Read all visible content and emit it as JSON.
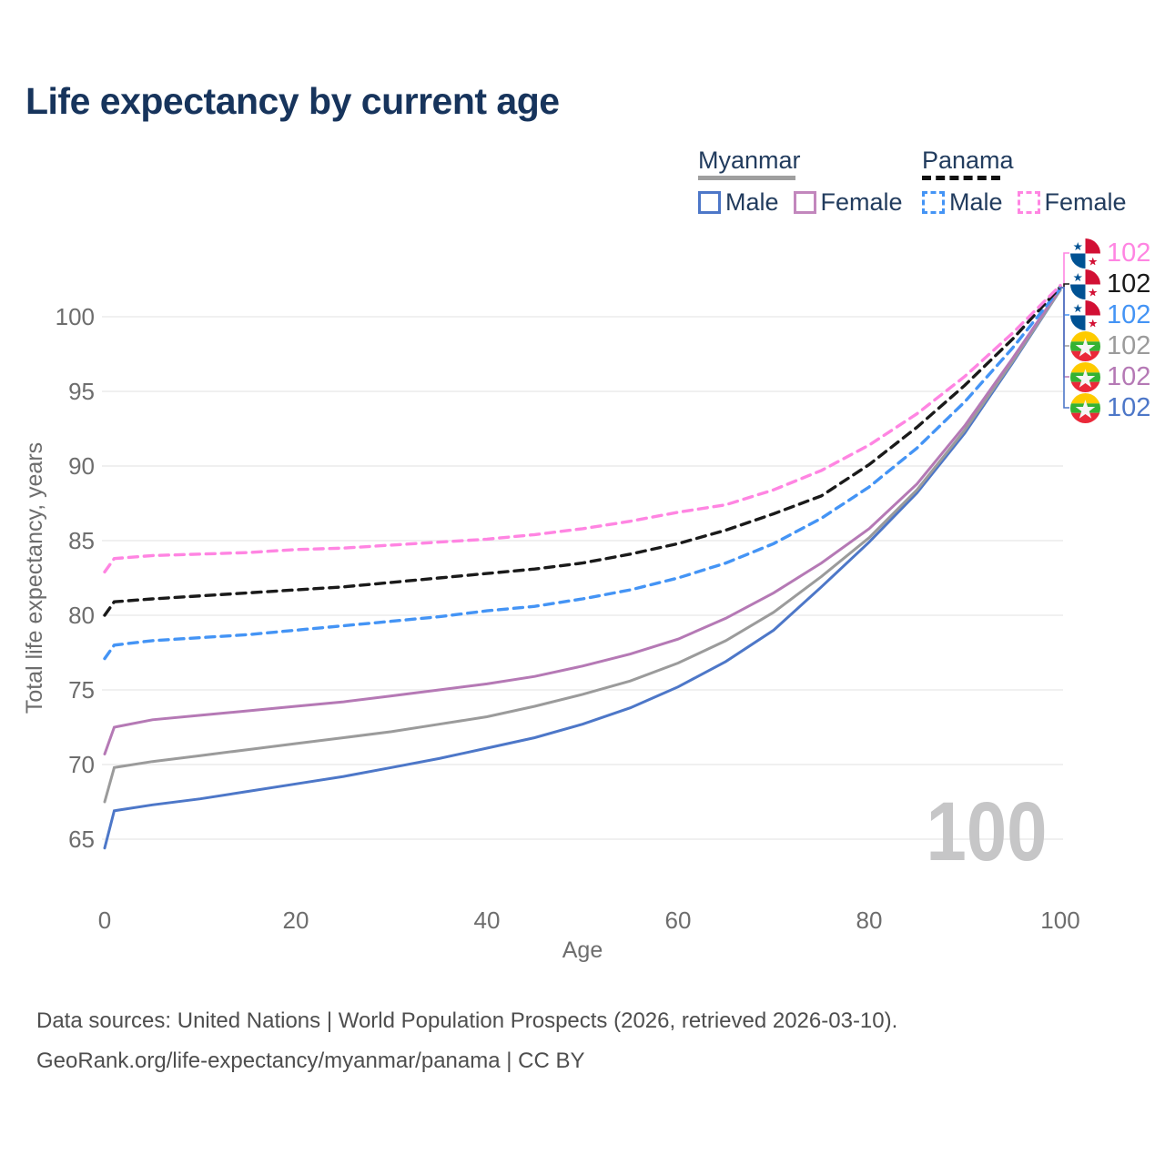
{
  "title": "Life expectancy by current age",
  "legend": {
    "groups": [
      {
        "country": "Myanmar",
        "style": "solid",
        "line_color": "#9f9f9f",
        "items": [
          {
            "label": "Male",
            "color": "#4d77c8"
          },
          {
            "label": "Female",
            "color": "#c287bd"
          }
        ]
      },
      {
        "country": "Panama",
        "style": "dashed",
        "line_color": "#111111",
        "items": [
          {
            "label": "Male",
            "color": "#4494f5"
          },
          {
            "label": "Female",
            "color": "#ff85e2"
          }
        ]
      }
    ]
  },
  "chart_data": {
    "type": "line",
    "title": "Life expectancy by current age",
    "xlabel": "Age",
    "ylabel": "Total life expectancy, years",
    "xlim": [
      0,
      100
    ],
    "ylim": [
      63,
      103
    ],
    "xticks": [
      0,
      20,
      40,
      60,
      80,
      100
    ],
    "yticks": [
      65,
      70,
      75,
      80,
      85,
      90,
      95,
      100
    ],
    "grid": "horizontal",
    "watermark": "100",
    "legend_position": "top-right",
    "x": [
      0,
      1,
      5,
      10,
      15,
      20,
      25,
      30,
      35,
      40,
      45,
      50,
      55,
      60,
      65,
      70,
      75,
      80,
      85,
      90,
      95,
      100
    ],
    "series": [
      {
        "name": "Myanmar Male",
        "color": "#4d77c8",
        "dash": false,
        "values": [
          64.4,
          66.9,
          67.3,
          67.7,
          68.2,
          68.7,
          69.2,
          69.8,
          70.4,
          71.1,
          71.8,
          72.7,
          73.8,
          75.2,
          76.9,
          79.0,
          81.9,
          84.9,
          88.2,
          92.2,
          96.9,
          101.8
        ]
      },
      {
        "name": "Myanmar (all)",
        "color": "#9b9b9b",
        "dash": false,
        "values": [
          67.5,
          69.8,
          70.2,
          70.6,
          71.0,
          71.4,
          71.8,
          72.2,
          72.7,
          73.2,
          73.9,
          74.7,
          75.6,
          76.8,
          78.3,
          80.2,
          82.6,
          85.2,
          88.4,
          92.4,
          97.0,
          101.8
        ]
      },
      {
        "name": "Myanmar Female",
        "color": "#b579b5",
        "dash": false,
        "values": [
          70.7,
          72.5,
          73.0,
          73.3,
          73.6,
          73.9,
          74.2,
          74.6,
          75.0,
          75.4,
          75.9,
          76.6,
          77.4,
          78.4,
          79.8,
          81.5,
          83.5,
          85.8,
          88.8,
          92.7,
          97.2,
          101.9
        ]
      },
      {
        "name": "Panama Male",
        "color": "#4494f5",
        "dash": true,
        "values": [
          77.1,
          78.0,
          78.3,
          78.5,
          78.7,
          79.0,
          79.3,
          79.6,
          79.9,
          80.3,
          80.6,
          81.1,
          81.7,
          82.5,
          83.5,
          84.8,
          86.5,
          88.6,
          91.2,
          94.3,
          97.9,
          101.9
        ]
      },
      {
        "name": "Panama (all)",
        "color": "#1a1a1a",
        "dash": true,
        "values": [
          80.0,
          80.9,
          81.1,
          81.3,
          81.5,
          81.7,
          81.9,
          82.2,
          82.5,
          82.8,
          83.1,
          83.5,
          84.1,
          84.8,
          85.7,
          86.8,
          88.0,
          90.1,
          92.6,
          95.4,
          98.5,
          102.0
        ]
      },
      {
        "name": "Panama Female",
        "color": "#ff85e2",
        "dash": true,
        "values": [
          82.9,
          83.8,
          84.0,
          84.1,
          84.2,
          84.4,
          84.5,
          84.7,
          84.9,
          85.1,
          85.4,
          85.8,
          86.3,
          86.9,
          87.4,
          88.4,
          89.7,
          91.4,
          93.5,
          96.0,
          98.9,
          102.1
        ]
      }
    ]
  },
  "endpoints": [
    {
      "flag": "panama",
      "value": "102",
      "color": "#ff85e2"
    },
    {
      "flag": "panama",
      "value": "102",
      "color": "#1a1a1a"
    },
    {
      "flag": "panama",
      "value": "102",
      "color": "#4494f5"
    },
    {
      "flag": "myanmar",
      "value": "102",
      "color": "#9b9b9b"
    },
    {
      "flag": "myanmar",
      "value": "102",
      "color": "#b579b5"
    },
    {
      "flag": "myanmar",
      "value": "102",
      "color": "#4d77c8"
    }
  ],
  "footer": {
    "line1": "Data sources: United Nations | World Population Prospects (2026, retrieved 2026-03-10).",
    "line2": "GeoRank.org/life-expectancy/myanmar/panama | CC BY"
  }
}
